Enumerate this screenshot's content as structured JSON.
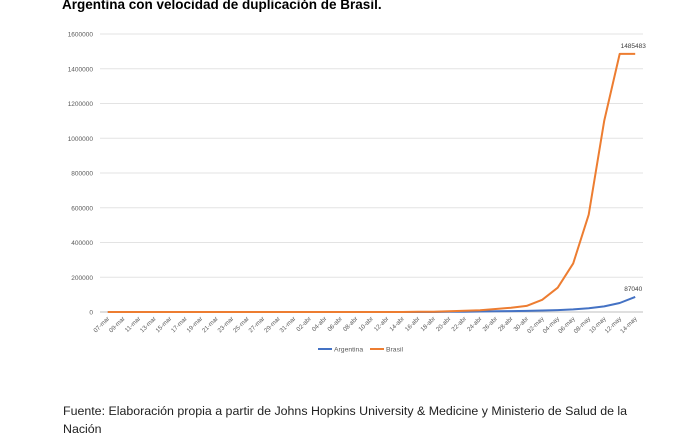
{
  "page": {
    "heading": "Argentina con velocidad de duplicación de Brasil.",
    "footer": "Fuente: Elaboración propia a partir de Johns Hopkins University & Medicine y Ministerio de Salud de la Nación"
  },
  "chart_data": {
    "type": "line",
    "title": "",
    "xlabel": "",
    "ylabel": "",
    "ylim": [
      0,
      1600000
    ],
    "y_ticks": [
      "0",
      "200000",
      "400000",
      "600000",
      "800000",
      "1000000",
      "1200000",
      "1400000",
      "1600000"
    ],
    "grid": "horizontal",
    "legend_position": "bottom",
    "x": [
      "07-mar",
      "09-mar",
      "11-mar",
      "13-mar",
      "15-mar",
      "17-mar",
      "19-mar",
      "21-mar",
      "23-mar",
      "25-mar",
      "27-mar",
      "29-mar",
      "31-mar",
      "02-abr",
      "04-abr",
      "06-abr",
      "08-abr",
      "10-abr",
      "12-abr",
      "14-abr",
      "16-abr",
      "18-abr",
      "20-abr",
      "22-abr",
      "24-abr",
      "26-abr",
      "28-abr",
      "30-abr",
      "02-may",
      "04-may",
      "06-may",
      "08-may",
      "10-may",
      "12-may",
      "14-may"
    ],
    "series": [
      {
        "name": "Argentina",
        "color": "#4472c4",
        "values": [
          0,
          0,
          0,
          0,
          0,
          0,
          0,
          0,
          0,
          0,
          0,
          0,
          0,
          0,
          0,
          0,
          0,
          0,
          0,
          0,
          0,
          0,
          1000,
          1800,
          2700,
          3800,
          5000,
          6500,
          8500,
          11000,
          15000,
          22000,
          32000,
          52000,
          87040
        ],
        "end_label": "87040"
      },
      {
        "name": "Brasil",
        "color": "#ed7d31",
        "values": [
          0,
          0,
          0,
          0,
          0,
          0,
          0,
          0,
          0,
          0,
          0,
          0,
          0,
          0,
          0,
          0,
          0,
          0,
          0,
          0,
          1000,
          2000,
          4000,
          7000,
          10000,
          17000,
          25000,
          35000,
          70000,
          140000,
          280000,
          560000,
          1100000,
          1485483,
          1485483
        ],
        "end_label": "1485483"
      }
    ]
  }
}
